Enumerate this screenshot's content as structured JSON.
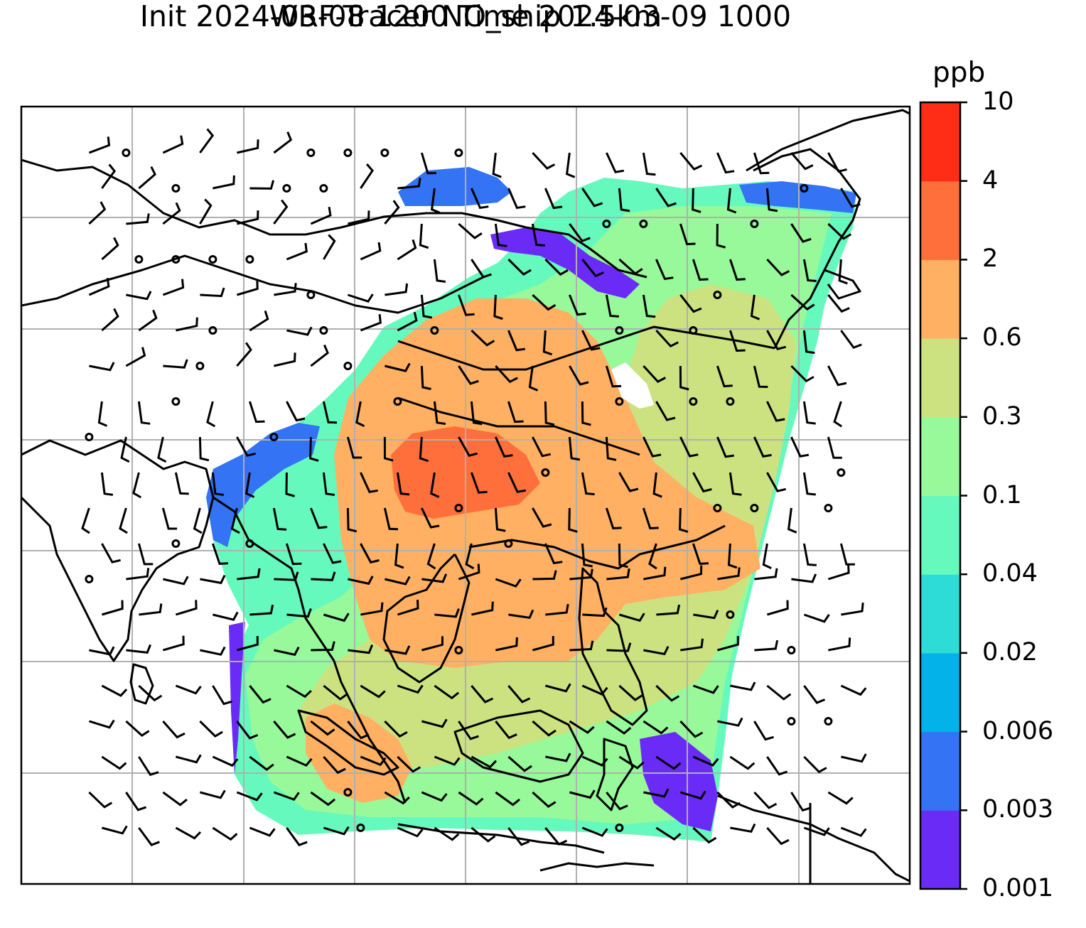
{
  "title_line1": "WRF-Tracer NO_ship 1.5km",
  "title_line2": "Init 2024-03-08 1200 Time 2024-03-09 1000",
  "colorbar": {
    "unit": "ppb",
    "ticks": [
      "0.001",
      "0.003",
      "0.006",
      "0.02",
      "0.04",
      "0.1",
      "0.3",
      "0.6",
      "2",
      "4",
      "10"
    ],
    "colors": [
      "#6b2bf7",
      "#3373f4",
      "#04b2ea",
      "#2edcd7",
      "#66f9bd",
      "#97f99a",
      "#cce281",
      "#ffb062",
      "#ff6f3b",
      "#ff2c16"
    ]
  },
  "map": {
    "background": "#ffffff",
    "coastline_color": "#000000",
    "gridline_color": "#b0b0b0",
    "wind_barb_color": "#000000"
  }
}
